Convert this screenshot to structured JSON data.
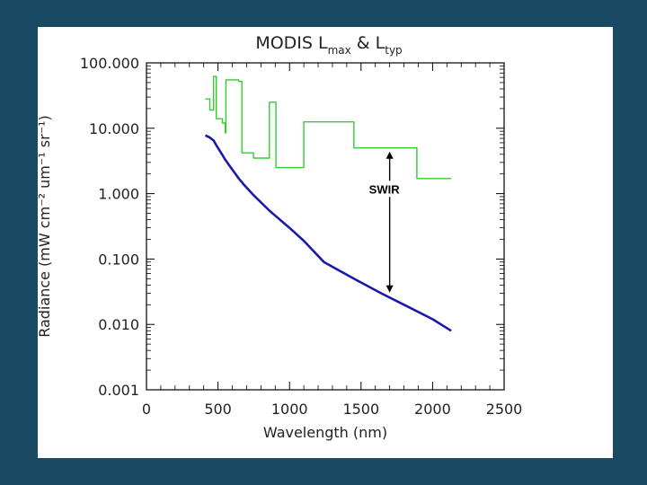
{
  "chart_data": {
    "type": "line",
    "title": {
      "prefix": "MODIS  L",
      "sub1": "max",
      "middle": " & L",
      "sub2": "typ"
    },
    "xlabel": "Wavelength (nm)",
    "ylabel": "Radiance (mW cm⁻² um⁻¹ sr⁻¹)",
    "x_scale": "linear",
    "y_scale": "log",
    "xlim": [
      0,
      2500
    ],
    "ylim": [
      0.001,
      100
    ],
    "x_ticks": [
      0,
      500,
      1000,
      1500,
      2000,
      2500
    ],
    "x_tick_labels": [
      "0",
      "500",
      "1000",
      "1500",
      "2000",
      "2500"
    ],
    "y_ticks": [
      0.001,
      0.01,
      0.1,
      1,
      10,
      100
    ],
    "y_tick_labels": [
      "0.001",
      "0.010",
      "0.100",
      "1.000",
      "10.000",
      "100.000"
    ],
    "series": [
      {
        "name": "Lmax",
        "color": "#33cc33",
        "step": true,
        "points": [
          [
            412,
            28
          ],
          [
            443,
            19
          ],
          [
            469,
            62
          ],
          [
            488,
            14
          ],
          [
            531,
            12
          ],
          [
            551,
            8.5
          ],
          [
            555,
            55
          ],
          [
            645,
            52
          ],
          [
            667,
            4.2
          ],
          [
            678,
            4.2
          ],
          [
            748,
            3.5
          ],
          [
            859,
            25
          ],
          [
            905,
            2.5
          ],
          [
            1100,
            12.5
          ],
          [
            1240,
            12.5
          ],
          [
            1450,
            5.0
          ],
          [
            1650,
            5.0
          ],
          [
            1890,
            1.7
          ],
          [
            2100,
            1.7
          ],
          [
            2130,
            1.7
          ]
        ]
      },
      {
        "name": "Ltyp",
        "color": "#1a1aaa",
        "step": false,
        "points": [
          [
            412,
            7.8
          ],
          [
            443,
            7.2
          ],
          [
            469,
            6.5
          ],
          [
            488,
            5.5
          ],
          [
            531,
            3.9
          ],
          [
            551,
            3.3
          ],
          [
            645,
            1.7
          ],
          [
            667,
            1.5
          ],
          [
            678,
            1.4
          ],
          [
            748,
            0.95
          ],
          [
            859,
            0.55
          ],
          [
            905,
            0.45
          ],
          [
            1000,
            0.3
          ],
          [
            1100,
            0.19
          ],
          [
            1240,
            0.09
          ],
          [
            1450,
            0.05
          ],
          [
            1640,
            0.03
          ],
          [
            1800,
            0.02
          ],
          [
            2000,
            0.012
          ],
          [
            2130,
            0.008
          ]
        ]
      }
    ],
    "annotations": [
      {
        "text": "SWIR",
        "x": 1700,
        "y_top": 5.0,
        "y_bottom": 0.027
      }
    ]
  }
}
